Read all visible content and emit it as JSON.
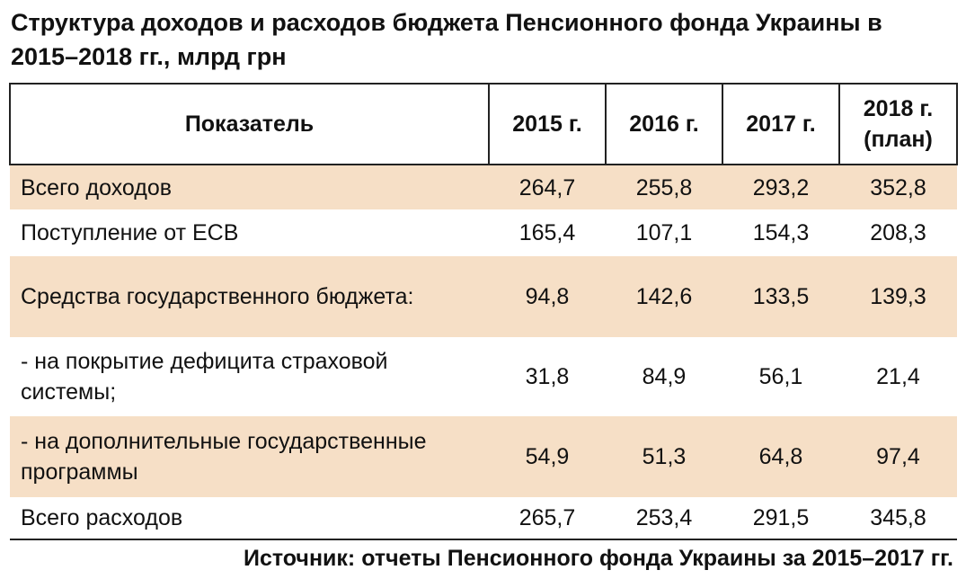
{
  "title": "Структура доходов и расходов бюджета Пенсионного фонда Украины в 2015–2018 гг., млрд грн",
  "source": "Источник: отчеты Пенсионного фонда Украины за 2015–2017 гг.",
  "chart_data": {
    "type": "table",
    "columns": [
      "Показатель",
      "2015 г.",
      "2016 г.",
      "2017 г.",
      "2018 г. (план)"
    ],
    "rows": [
      {
        "label": "Всего доходов",
        "values": [
          "264,7",
          "255,8",
          "293,2",
          "352,8"
        ],
        "shaded": true
      },
      {
        "label": "Поступление от ЕСВ",
        "values": [
          "165,4",
          "107,1",
          "154,3",
          "208,3"
        ],
        "shaded": false
      },
      {
        "label": "Средства государственного бюджета:",
        "values": [
          "94,8",
          "142,6",
          "133,5",
          "139,3"
        ],
        "shaded": true
      },
      {
        "label": "- на покрытие дефицита страховой системы;",
        "values": [
          "31,8",
          "84,9",
          "56,1",
          "21,4"
        ],
        "shaded": false
      },
      {
        "label": "- на дополнительные государственные программы",
        "values": [
          "54,9",
          "51,3",
          "64,8",
          "97,4"
        ],
        "shaded": true
      },
      {
        "label": "Всего расходов",
        "values": [
          "265,7",
          "253,4",
          "291,5",
          "345,8"
        ],
        "shaded": false
      }
    ],
    "colors": {
      "shade": "#f6dfc6",
      "border": "#222222"
    }
  }
}
